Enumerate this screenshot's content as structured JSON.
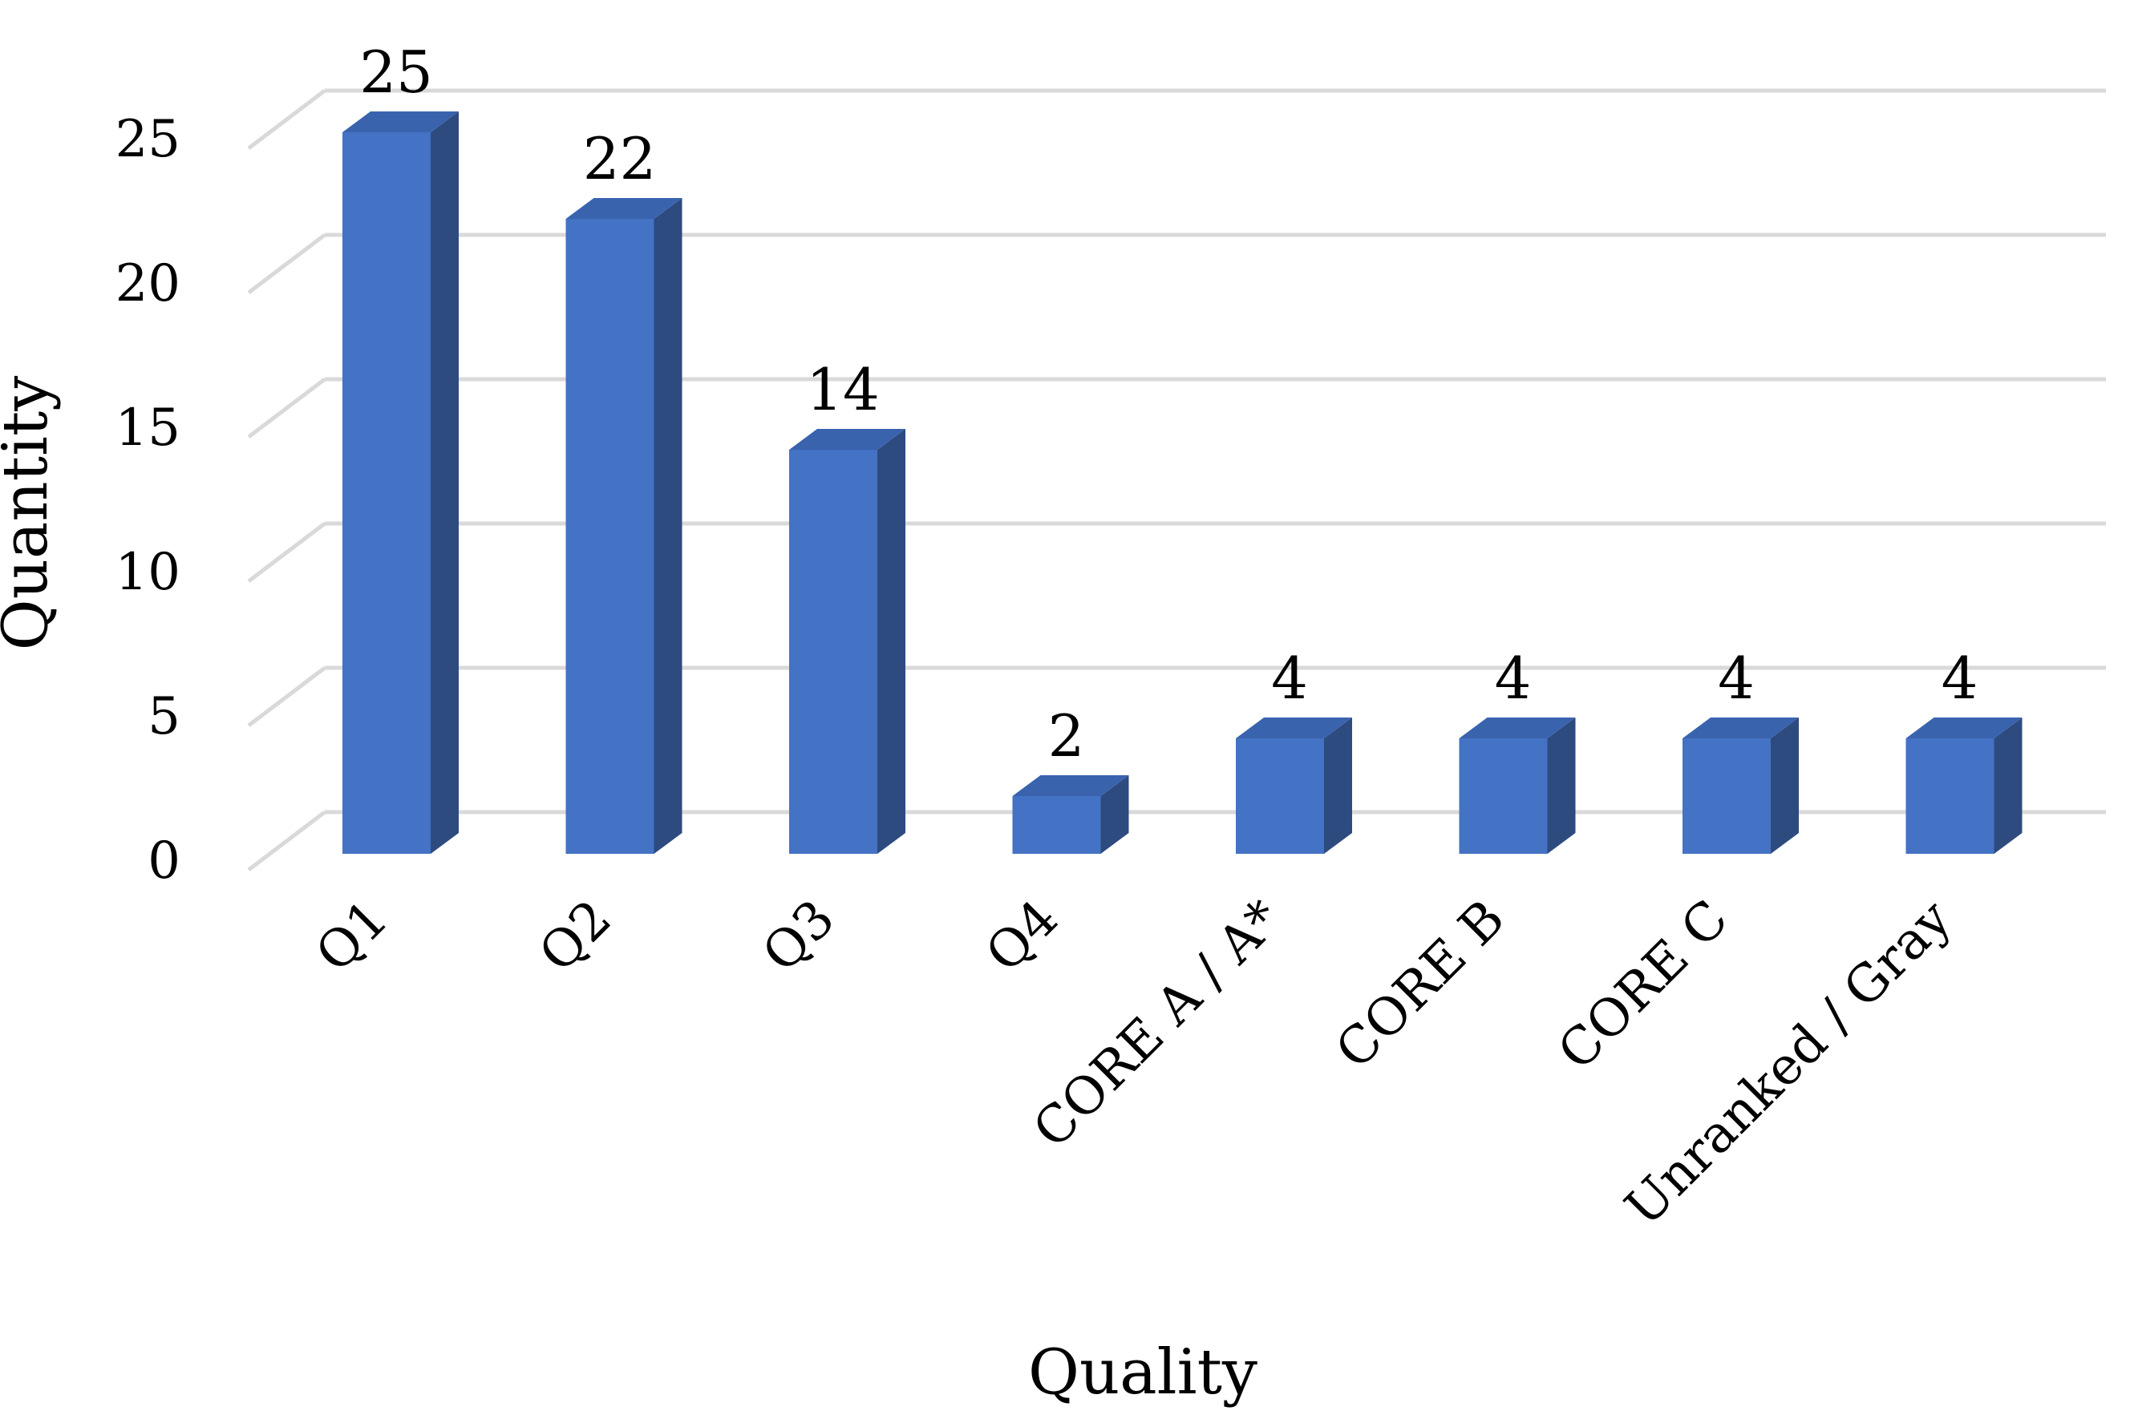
{
  "chart_data": {
    "type": "bar",
    "categories": [
      "Q1",
      "Q2",
      "Q3",
      "Q4",
      "CORE A / A*",
      "CORE B",
      "CORE C",
      "Unranked / Gray"
    ],
    "values": [
      25,
      22,
      14,
      2,
      4,
      4,
      4,
      4
    ],
    "xlabel": "Quality",
    "ylabel": "Quantity",
    "ylim": [
      0,
      25
    ],
    "yticks": [
      0,
      5,
      10,
      15,
      20,
      25
    ],
    "grid": true,
    "legend": "none",
    "style": "3d-column",
    "data_labels": true
  },
  "colors": {
    "bar_front": "#4472C4",
    "bar_side": "#2E4B80",
    "bar_top": "#3A63AE",
    "grid": "#D9D9D9"
  }
}
